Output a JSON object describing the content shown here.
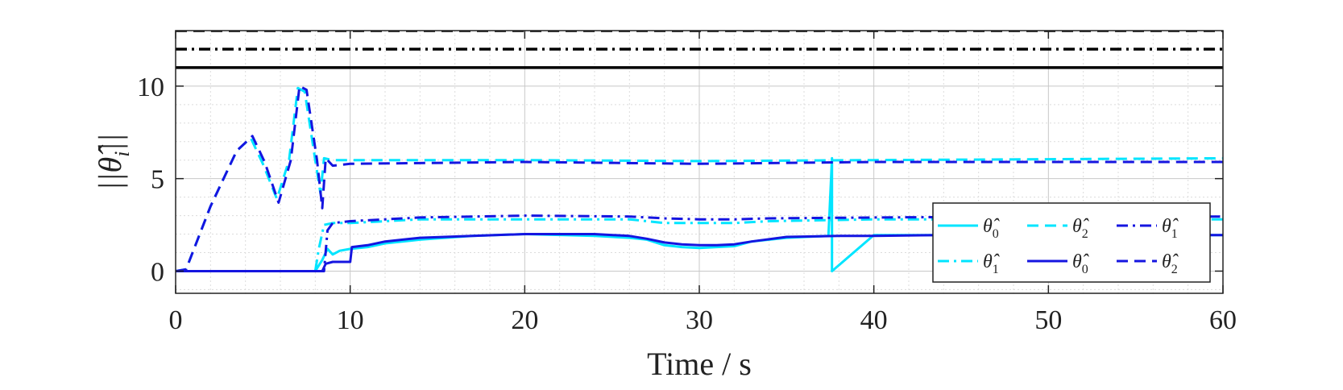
{
  "chart_data": {
    "type": "line",
    "title": "",
    "xlabel": "Time / s",
    "ylabel": "||θ̂_i||",
    "xlim": [
      0,
      60
    ],
    "ylim": [
      -1.2,
      13
    ],
    "xticks": [
      0,
      10,
      20,
      30,
      40,
      50,
      60
    ],
    "yticks": [
      0,
      5,
      10
    ],
    "grid": true,
    "minor_grid": true,
    "legend_position": "lower-right",
    "reference_lines": [
      {
        "style": "dashed",
        "color": "#000000",
        "y": 13
      },
      {
        "style": "dashdot",
        "color": "#000000",
        "y": 12
      },
      {
        "style": "solid",
        "color": "#000000",
        "y": 11
      }
    ],
    "series": [
      {
        "name": "θ̂0",
        "color": "#00e5ff",
        "style": "solid",
        "x": [
          0,
          8,
          8.4,
          8.7,
          9.0,
          9.4,
          10,
          11,
          12,
          14,
          17,
          20,
          24,
          26,
          27,
          28,
          29,
          30,
          31,
          32,
          33,
          35,
          37.4,
          37.6,
          37.6,
          40,
          44,
          48,
          52,
          56,
          60
        ],
        "y": [
          0,
          0,
          0.6,
          1.2,
          0.9,
          1.1,
          1.2,
          1.3,
          1.5,
          1.7,
          1.9,
          2.0,
          1.9,
          1.8,
          1.7,
          1.4,
          1.3,
          1.25,
          1.3,
          1.35,
          1.6,
          1.8,
          1.9,
          6.1,
          0,
          1.95,
          1.95,
          1.95,
          1.95,
          1.95,
          1.95
        ]
      },
      {
        "name": "θ̂1",
        "color": "#00e5ff",
        "style": "dashdot",
        "x": [
          0,
          8,
          8.2,
          8.5,
          9,
          10,
          12,
          14,
          20,
          26,
          28,
          30,
          32,
          34,
          40,
          50,
          60
        ],
        "y": [
          0,
          0,
          1.2,
          2.5,
          2.6,
          2.6,
          2.7,
          2.8,
          2.8,
          2.8,
          2.6,
          2.6,
          2.6,
          2.7,
          2.8,
          2.8,
          2.8
        ]
      },
      {
        "name": "θ̂2",
        "color": "#00e5ff",
        "style": "dashed",
        "x": [
          0,
          0.6,
          2,
          3.5,
          4.3,
          5.0,
          5.8,
          6.5,
          7.0,
          7.4,
          8.0,
          8.3,
          8.5,
          9,
          10,
          20,
          30,
          40,
          50,
          60
        ],
        "y": [
          0,
          0.1,
          3.5,
          6.5,
          7.2,
          5.8,
          3.9,
          6.0,
          9.9,
          9.7,
          6.0,
          4.2,
          6.1,
          6.0,
          6.0,
          6.0,
          5.95,
          6.0,
          6.05,
          6.1
        ]
      },
      {
        "name": "θ̂0",
        "color": "#1515e0",
        "style": "solid",
        "x": [
          0,
          8.4,
          8.6,
          9,
          10,
          10.1,
          11,
          12,
          14,
          17,
          20,
          24,
          26,
          27,
          28,
          29,
          30,
          31,
          32,
          33,
          35,
          38,
          40,
          44,
          50,
          55,
          60
        ],
        "y": [
          0,
          0,
          0.4,
          0.5,
          0.5,
          1.3,
          1.4,
          1.6,
          1.8,
          1.9,
          2.0,
          2.0,
          1.9,
          1.75,
          1.55,
          1.45,
          1.4,
          1.4,
          1.45,
          1.6,
          1.85,
          1.9,
          1.9,
          1.95,
          1.95,
          1.95,
          1.95
        ]
      },
      {
        "name": "θ̂1",
        "color": "#1515e0",
        "style": "dashdot",
        "x": [
          0,
          8.5,
          8.7,
          9,
          10,
          12,
          14,
          20,
          26,
          28,
          30,
          32,
          34,
          40,
          50,
          60
        ],
        "y": [
          0,
          0,
          2.2,
          2.6,
          2.7,
          2.8,
          2.9,
          3.0,
          2.95,
          2.85,
          2.8,
          2.8,
          2.85,
          2.9,
          2.95,
          2.95
        ]
      },
      {
        "name": "θ̂2",
        "color": "#1515e0",
        "style": "dashed",
        "x": [
          0,
          0.6,
          2,
          3.5,
          4.4,
          5.1,
          5.9,
          6.6,
          7.1,
          7.5,
          8.1,
          8.4,
          8.6,
          9,
          10,
          20,
          30,
          40,
          50,
          60
        ],
        "y": [
          0,
          0.1,
          3.5,
          6.5,
          7.3,
          5.9,
          3.7,
          6.0,
          10.0,
          9.8,
          6.0,
          3.4,
          6.1,
          5.7,
          5.8,
          5.9,
          5.8,
          5.9,
          5.9,
          5.9
        ]
      }
    ],
    "legend": {
      "columns": [
        [
          {
            "series": 0,
            "sub": "0"
          },
          {
            "series": 1,
            "sub": "1"
          }
        ],
        [
          {
            "series": 2,
            "sub": "2"
          },
          {
            "series": 3,
            "sub": "0"
          }
        ],
        [
          {
            "series": 4,
            "sub": "1"
          },
          {
            "series": 5,
            "sub": "2"
          }
        ]
      ],
      "symbol": "θ̂"
    }
  }
}
